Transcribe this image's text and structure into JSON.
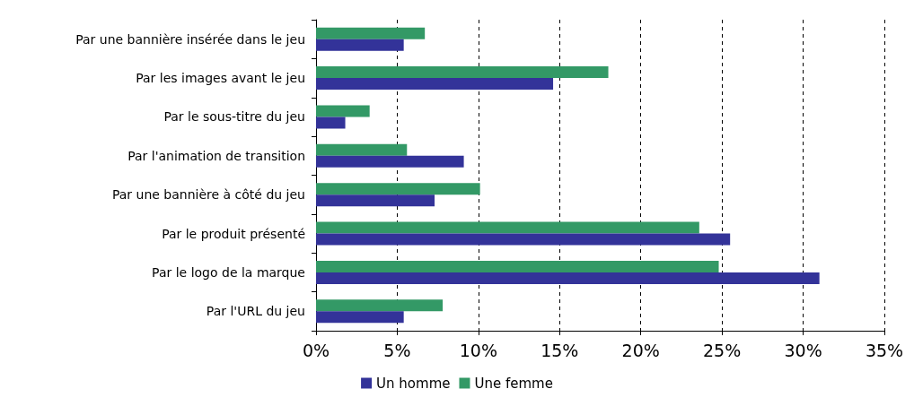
{
  "chart_data": {
    "type": "bar",
    "orientation": "horizontal",
    "categories": [
      "Par une bannière insérée dans le jeu",
      "Par les images avant le jeu",
      "Par le sous-titre du jeu",
      "Par l'animation de transition",
      "Par une bannière à côté du jeu",
      "Par le produit présenté",
      "Par le logo de la marque",
      "Par l'URL du jeu"
    ],
    "series": [
      {
        "name": "Un homme",
        "color": "#333399",
        "values": [
          5.4,
          14.6,
          1.8,
          9.1,
          7.3,
          25.5,
          31.0,
          5.4
        ]
      },
      {
        "name": "Une femme",
        "color": "#339966",
        "values": [
          6.7,
          18.0,
          3.3,
          5.6,
          10.1,
          23.6,
          24.8,
          7.8
        ]
      }
    ],
    "xlim": [
      0,
      35
    ],
    "xticks": [
      {
        "value": 0,
        "label": "0%"
      },
      {
        "value": 5,
        "label": "5%"
      },
      {
        "value": 10,
        "label": "10%"
      },
      {
        "value": 15,
        "label": "15%"
      },
      {
        "value": 20,
        "label": "20%"
      },
      {
        "value": 25,
        "label": "25%"
      },
      {
        "value": 30,
        "label": "30%"
      },
      {
        "value": 35,
        "label": "35%"
      }
    ],
    "grid": "x",
    "legend": "bottom"
  }
}
